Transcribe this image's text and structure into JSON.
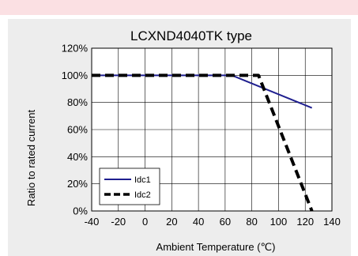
{
  "chart_data": {
    "type": "line",
    "title": "LCXND4040TK type",
    "xlabel": "Ambient Temperature (℃)",
    "ylabel": "Ratio to rated current",
    "xlim": [
      -40,
      140
    ],
    "ylim": [
      0,
      120
    ],
    "x_ticks": [
      "-40",
      "-20",
      "0",
      "20",
      "40",
      "60",
      "80",
      "100",
      "120",
      "140"
    ],
    "y_ticks": [
      "0%",
      "20%",
      "40%",
      "60%",
      "80%",
      "100%",
      "120%"
    ],
    "grid": true,
    "legend_position": "bottom-left",
    "series": [
      {
        "name": "Idc1",
        "style": "solid",
        "color": "#1f1f8f",
        "points": [
          [
            -40,
            100
          ],
          [
            65,
            100
          ],
          [
            125,
            76
          ]
        ]
      },
      {
        "name": "Idc2",
        "style": "dashed",
        "color": "#000000",
        "points": [
          [
            -40,
            100
          ],
          [
            85,
            100
          ],
          [
            125,
            0
          ]
        ]
      }
    ]
  }
}
